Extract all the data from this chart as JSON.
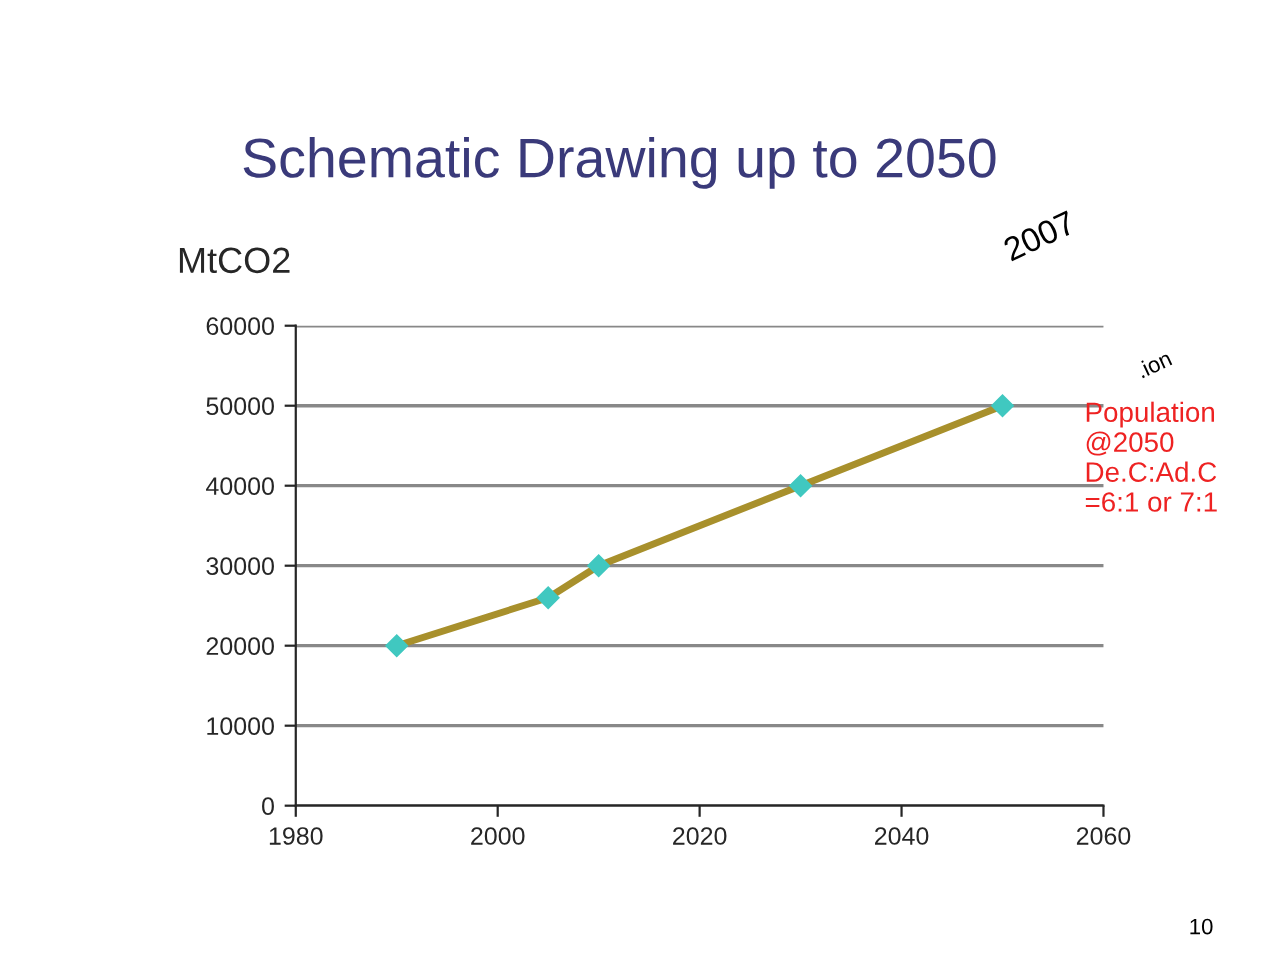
{
  "chart_data": {
    "type": "line",
    "title": "Schematic Drawing up to 2050",
    "ylabel": "MtCO2",
    "x": [
      1990,
      2005,
      2010,
      2030,
      2050
    ],
    "series": [
      {
        "color": "#a8902c",
        "colors": [
          "#40c8c0",
          "#40c8c0",
          "#40c8c0",
          "#40c8c0",
          "#40c8c0"
        ],
        "values": [
          20000,
          26000,
          30000,
          40000,
          50000
        ]
      }
    ],
    "xlim": [
      1980,
      2060
    ],
    "xticks": [
      1980,
      2000,
      2020,
      2040,
      2060
    ],
    "ylim": [
      0,
      60000
    ],
    "yticks": [
      0,
      10000,
      20000,
      30000,
      40000,
      50000,
      60000
    ],
    "grid": "y",
    "marker": "diamond",
    "line_style": "solid",
    "annotations": [
      "Population\n@2050\nDe.C:Ad.C\n=6:1 or 7:1",
      "2007",
      ".ion",
      "10"
    ]
  }
}
